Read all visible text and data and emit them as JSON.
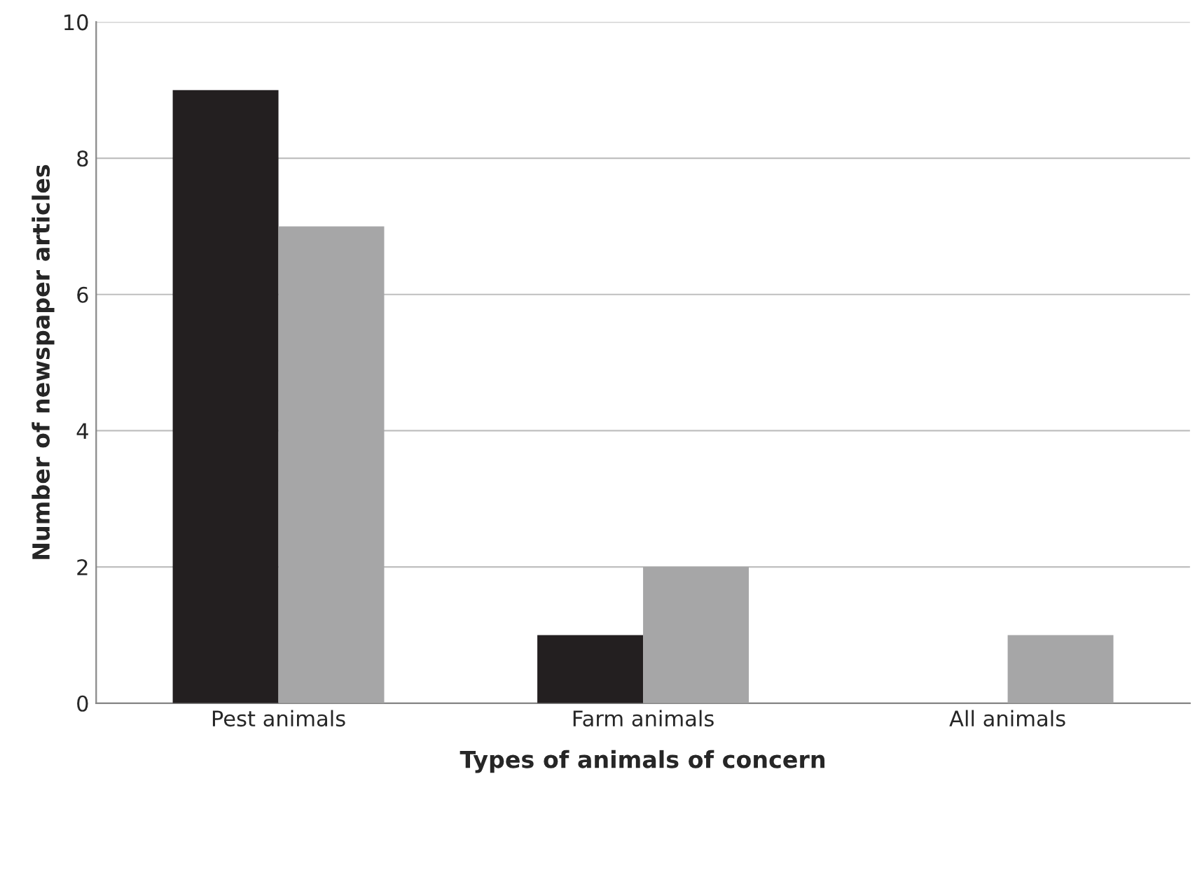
{
  "chart_data": {
    "type": "bar",
    "xlabel": "Types of animals of concern",
    "ylabel": "Number of newspaper articles",
    "categories": [
      "Pest animals",
      "Farm animals",
      "All animals"
    ],
    "series": [
      {
        "color": "#231f20",
        "values": [
          9,
          1,
          0
        ]
      },
      {
        "color": "#a6a6a7",
        "values": [
          7,
          2,
          1
        ]
      }
    ],
    "ylim": [
      0,
      10
    ],
    "yticks": [
      0,
      2,
      4,
      6,
      8,
      10
    ],
    "grid": "y"
  }
}
